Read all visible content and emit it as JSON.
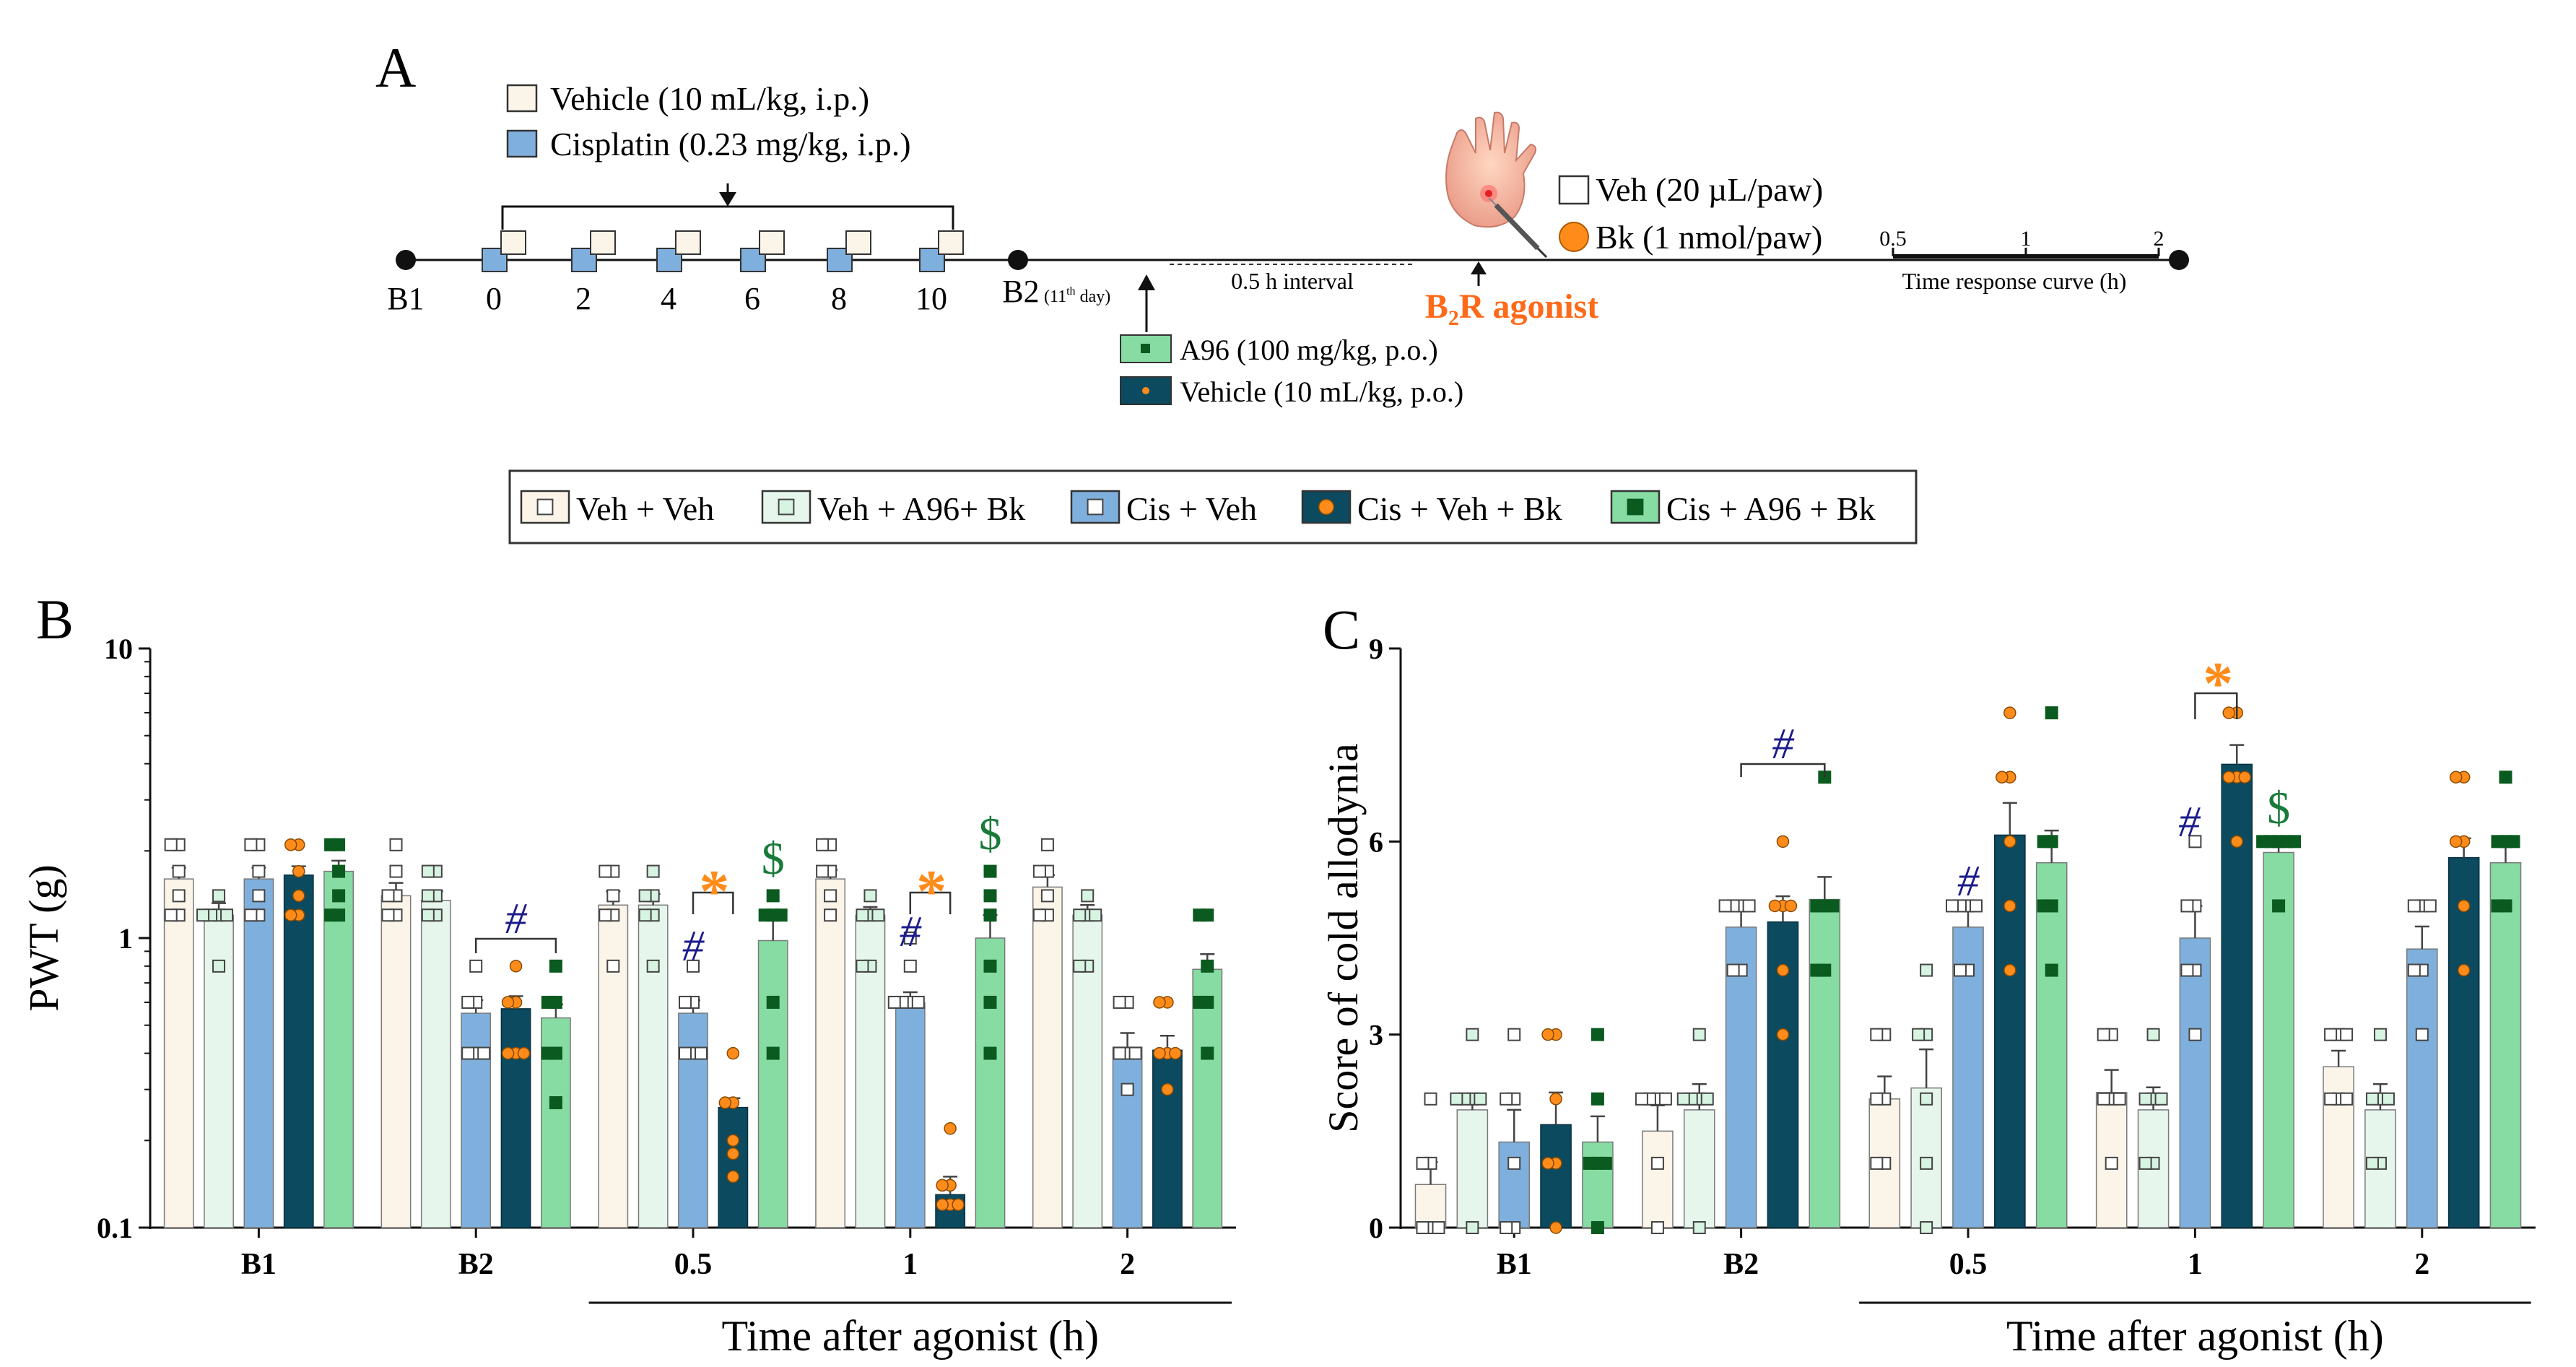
{
  "panel_a": {
    "label": "A",
    "treatment": {
      "vehicle_label": "Vehicle (10 mL/kg, i.p.)",
      "cisplatin_label": "Cisplatin (0.23 mg/kg, i.p.)"
    },
    "timeline": {
      "b1": "B1",
      "days": [
        "0",
        "2",
        "4",
        "6",
        "8",
        "10"
      ],
      "b2": "B2",
      "b2_note": "(11",
      "b2_note_sup": "th",
      "b2_note_end": " day)",
      "interval": "0.5 h interval",
      "oral_a96": "A96 (100 mg/kg, p.o.)",
      "oral_vehicle": "Vehicle (10 mL/kg, p.o.)",
      "agonist_b": "B",
      "agonist_sub": "2",
      "agonist_rest": "R agonist",
      "veh_paw": "Veh (20 µL/paw)",
      "bk_paw": "Bk (1 nmol/paw)",
      "time_ticks": [
        "0.5",
        "1",
        "2"
      ],
      "time_curve_label": "Time response curve (h)"
    }
  },
  "legend": {
    "items": [
      "Veh + Veh",
      "Veh + A96+ Bk",
      "Cis + Veh",
      "Cis + Veh + Bk",
      "Cis + A96 + Bk"
    ]
  },
  "colors": {
    "veh_veh": "#fbf4e8",
    "veh_a96_bk": "#e6f6ec",
    "cis_veh": "#7fb0dd",
    "cis_veh_bk": "#0c4a60",
    "cis_a96_bk": "#86dca2",
    "orange": "#ff8c1a",
    "navy": "#1b1b8c",
    "green_sym": "#1a7a3a",
    "dark_green": "#0b5a1f"
  },
  "chart_data": [
    {
      "id": "B",
      "panel_label": "B",
      "type": "bar",
      "yscale": "log",
      "ylabel": "PWT (g)",
      "yticks": [
        "0.1",
        "1",
        "10"
      ],
      "ylim": [
        0.1,
        10
      ],
      "categories": [
        "B1",
        "B2",
        "0.5",
        "1",
        "2"
      ],
      "xlabel": "Time after agonist (h)",
      "series": [
        {
          "name": "Veh + Veh",
          "values": [
            1.6,
            1.4,
            1.3,
            1.6,
            1.5
          ],
          "errors": [
            0.15,
            0.15,
            0.15,
            0.12,
            0.15
          ],
          "points": [
            [
              2.1,
              1.7,
              1.4,
              1.2,
              1.2,
              2.1
            ],
            [
              1.7,
              1.4,
              1.2,
              1.2,
              2.1,
              1.4
            ],
            [
              1.7,
              1.4,
              1.2,
              0.8,
              1.2,
              1.7
            ],
            [
              2.1,
              1.7,
              1.4,
              1.2,
              1.7,
              2.1
            ],
            [
              1.7,
              1.4,
              1.2,
              1.2,
              2.1,
              1.7
            ]
          ]
        },
        {
          "name": "Veh + A96+ Bk",
          "values": [
            1.2,
            1.35,
            1.3,
            1.2,
            1.2
          ],
          "errors": [
            0.12,
            0.1,
            0.12,
            0.08,
            0.1
          ],
          "points": [
            [
              1.4,
              1.2,
              1.2,
              0.8,
              1.2,
              1.2
            ],
            [
              1.7,
              1.4,
              1.2,
              1.2,
              1.4,
              1.7
            ],
            [
              1.7,
              1.4,
              1.2,
              0.8,
              1.4,
              1.2
            ],
            [
              1.2,
              1.2,
              0.8,
              1.2,
              1.4,
              0.8
            ],
            [
              1.2,
              1.2,
              0.8,
              1.4,
              1.2,
              0.8
            ]
          ]
        },
        {
          "name": "Cis + Veh",
          "values": [
            1.6,
            0.55,
            0.55,
            0.6,
            0.42
          ],
          "errors": [
            0.15,
            0.06,
            0.06,
            0.05,
            0.05
          ],
          "points": [
            [
              2.1,
              1.7,
              1.4,
              1.2,
              1.2,
              2.1
            ],
            [
              0.8,
              0.6,
              0.4,
              0.4,
              0.6,
              0.4
            ],
            [
              0.8,
              0.6,
              0.4,
              0.4,
              0.6,
              0.4
            ],
            [
              0.8,
              0.6,
              0.6,
              0.6,
              1.0,
              0.6
            ],
            [
              0.6,
              0.4,
              0.4,
              0.3,
              0.4,
              0.6
            ]
          ]
        },
        {
          "name": "Cis + Veh + Bk",
          "values": [
            1.65,
            0.57,
            0.26,
            0.13,
            0.41
          ],
          "errors": [
            0.12,
            0.06,
            0.02,
            0.02,
            0.05
          ],
          "points": [
            [
              2.1,
              1.7,
              1.4,
              1.2,
              1.2,
              2.1
            ],
            [
              0.8,
              0.6,
              0.4,
              0.4,
              0.6,
              0.4
            ],
            [
              0.4,
              0.27,
              0.2,
              0.18,
              0.15,
              0.27
            ],
            [
              0.22,
              0.14,
              0.12,
              0.12,
              0.14,
              0.12
            ],
            [
              0.6,
              0.4,
              0.4,
              0.3,
              0.4,
              0.6
            ]
          ]
        },
        {
          "name": "Cis + A96 + Bk",
          "values": [
            1.7,
            0.53,
            0.98,
            1.0,
            0.78
          ],
          "errors": [
            0.15,
            0.06,
            0.18,
            0.2,
            0.1
          ],
          "points": [
            [
              2.1,
              1.7,
              1.4,
              1.2,
              1.2,
              2.1
            ],
            [
              0.8,
              0.6,
              0.4,
              0.27,
              0.6,
              0.4
            ],
            [
              1.4,
              1.2,
              1.2,
              0.6,
              0.4,
              1.2
            ],
            [
              1.7,
              1.4,
              1.2,
              0.6,
              0.4,
              0.8
            ],
            [
              1.2,
              0.8,
              0.6,
              0.4,
              0.6,
              1.2
            ]
          ]
        }
      ],
      "annotations": {
        "hash": "#",
        "star": "*",
        "dollar": "$"
      }
    },
    {
      "id": "C",
      "panel_label": "C",
      "type": "bar",
      "yscale": "linear",
      "ylabel": "Score of cold allodynia",
      "yticks": [
        "0",
        "3",
        "6",
        "9"
      ],
      "ylim": [
        0,
        9
      ],
      "categories": [
        "B1",
        "B2",
        "0.5",
        "1",
        "2"
      ],
      "xlabel": "Time after agonist (h)",
      "series": [
        {
          "name": "Veh + Veh",
          "values": [
            0.67,
            1.5,
            2.0,
            2.1,
            2.5
          ],
          "errors": [
            0.35,
            0.4,
            0.35,
            0.35,
            0.25
          ],
          "points": [
            [
              1,
              1,
              0,
              0,
              2,
              0
            ],
            [
              2,
              2,
              1,
              0,
              2,
              2
            ],
            [
              3,
              3,
              2,
              1,
              1,
              2
            ],
            [
              3,
              3,
              2,
              1,
              2,
              2
            ],
            [
              3,
              3,
              2,
              2,
              3,
              2
            ]
          ]
        },
        {
          "name": "Veh + A96+ Bk",
          "values": [
            1.83,
            1.83,
            2.17,
            1.83,
            1.83
          ],
          "errors": [
            0.2,
            0.4,
            0.6,
            0.35,
            0.4
          ],
          "points": [
            [
              2,
              2,
              3,
              0,
              2,
              2
            ],
            [
              2,
              2,
              3,
              0,
              2,
              2
            ],
            [
              3,
              2,
              1,
              0,
              3,
              4
            ],
            [
              2,
              2,
              1,
              1,
              3,
              2
            ],
            [
              2,
              2,
              1,
              1,
              3,
              2
            ]
          ]
        },
        {
          "name": "Cis + Veh",
          "values": [
            1.33,
            4.67,
            4.67,
            4.5,
            4.33
          ],
          "errors": [
            0.5,
            0.3,
            0.3,
            0.5,
            0.35
          ],
          "points": [
            [
              2,
              2,
              1,
              0,
              3,
              0
            ],
            [
              5,
              5,
              4,
              4,
              5,
              5
            ],
            [
              5,
              5,
              4,
              4,
              5,
              5
            ],
            [
              6,
              5,
              4,
              3,
              5,
              4
            ],
            [
              5,
              5,
              4,
              3,
              4,
              5
            ]
          ]
        },
        {
          "name": "Cis + Veh + Bk",
          "values": [
            1.6,
            4.75,
            6.1,
            7.2,
            5.75
          ],
          "errors": [
            0.5,
            0.4,
            0.5,
            0.3,
            0.3
          ],
          "points": [
            [
              3,
              3,
              2,
              1,
              0,
              1
            ],
            [
              6,
              5,
              5,
              4,
              3,
              5
            ],
            [
              8,
              7,
              7,
              6,
              5,
              4
            ],
            [
              8,
              8,
              7,
              7,
              6,
              7
            ],
            [
              7,
              7,
              6,
              5,
              4,
              6
            ]
          ]
        },
        {
          "name": "Cis + A96 + Bk",
          "values": [
            1.33,
            5.1,
            5.67,
            5.83,
            5.67
          ],
          "errors": [
            0.4,
            0.35,
            0.5,
            0.17,
            0.4
          ],
          "points": [
            [
              3,
              2,
              1,
              1,
              0,
              1
            ],
            [
              7,
              5,
              5,
              4,
              4,
              5
            ],
            [
              8,
              6,
              6,
              5,
              4,
              5
            ],
            [
              6,
              6,
              6,
              6,
              5,
              6
            ],
            [
              7,
              6,
              6,
              5,
              5,
              6
            ]
          ]
        }
      ],
      "annotations": {
        "hash": "#",
        "star": "*",
        "dollar": "$"
      }
    }
  ]
}
